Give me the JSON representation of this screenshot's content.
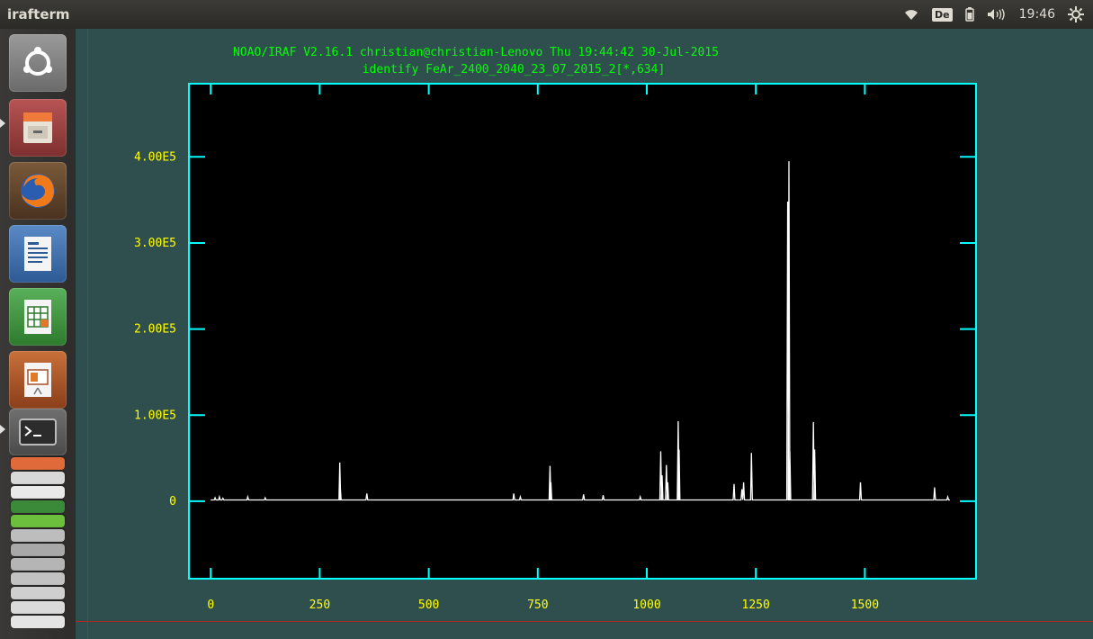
{
  "window": {
    "title": "irafterm"
  },
  "panel": {
    "clock": "19:46",
    "keyboard": "De",
    "icons": [
      "wifi-icon",
      "keyboard-layout-indicator",
      "battery-icon",
      "volume-icon",
      "session-gear-icon"
    ]
  },
  "launcher": {
    "items": [
      {
        "name": "ubuntu-dash-icon",
        "color": "#7a7a7a"
      },
      {
        "name": "files-icon",
        "color": "#9b3c3c"
      },
      {
        "name": "firefox-icon",
        "color": "#6b4a2a"
      },
      {
        "name": "writer-icon",
        "color": "#3d6ea6"
      },
      {
        "name": "calc-icon",
        "color": "#3d8a3d"
      },
      {
        "name": "impress-icon",
        "color": "#a6502c"
      },
      {
        "name": "terminal-icon",
        "color": "#3a3a3a"
      }
    ]
  },
  "chart_data": {
    "type": "line",
    "header_line1": "NOAO/IRAF V2.16.1 christian@christian-Lenovo Thu 19:44:42 30-Jul-2015",
    "header_line2": "identify FeAr_2400_2040_23_07_2015_2[*,634]",
    "x_ticks": [
      0,
      250,
      500,
      750,
      1000,
      1250,
      1500
    ],
    "x_tick_labels": [
      "0",
      "250",
      "500",
      "750",
      "1000",
      "1250",
      "1500"
    ],
    "y_ticks": [
      0,
      100000,
      200000,
      300000,
      400000
    ],
    "y_tick_labels": [
      "0",
      "1.00E5",
      "2.00E5",
      "3.00E5",
      "4.00E5"
    ],
    "xlim": [
      -50,
      1755
    ],
    "ylim": [
      -90000,
      485000
    ],
    "colors": {
      "axes": "#00ffff",
      "labels": "#ffff00",
      "header": "#00ff00",
      "data": "#ffffff",
      "background": "#000000"
    },
    "baseline": 1500,
    "lines": [
      {
        "x": 10,
        "y": 4000
      },
      {
        "x": 20,
        "y": 5000
      },
      {
        "x": 28,
        "y": 3500
      },
      {
        "x": 85,
        "y": 5000
      },
      {
        "x": 125,
        "y": 4000
      },
      {
        "x": 296,
        "y": 45000
      },
      {
        "x": 297,
        "y": 18000
      },
      {
        "x": 358,
        "y": 9000
      },
      {
        "x": 695,
        "y": 9000
      },
      {
        "x": 710,
        "y": 5000
      },
      {
        "x": 778,
        "y": 41000
      },
      {
        "x": 780,
        "y": 22000
      },
      {
        "x": 855,
        "y": 8000
      },
      {
        "x": 900,
        "y": 7000
      },
      {
        "x": 985,
        "y": 5000
      },
      {
        "x": 1032,
        "y": 58000
      },
      {
        "x": 1035,
        "y": 30000
      },
      {
        "x": 1045,
        "y": 42000
      },
      {
        "x": 1048,
        "y": 22000
      },
      {
        "x": 1072,
        "y": 93000
      },
      {
        "x": 1074,
        "y": 60000
      },
      {
        "x": 1200,
        "y": 20000
      },
      {
        "x": 1218,
        "y": 14000
      },
      {
        "x": 1222,
        "y": 22000
      },
      {
        "x": 1240,
        "y": 56000
      },
      {
        "x": 1323,
        "y": 348000
      },
      {
        "x": 1326,
        "y": 395000
      },
      {
        "x": 1328,
        "y": 58000
      },
      {
        "x": 1382,
        "y": 92000
      },
      {
        "x": 1385,
        "y": 60000
      },
      {
        "x": 1490,
        "y": 22000
      },
      {
        "x": 1660,
        "y": 16000
      },
      {
        "x": 1690,
        "y": 5000
      }
    ]
  }
}
